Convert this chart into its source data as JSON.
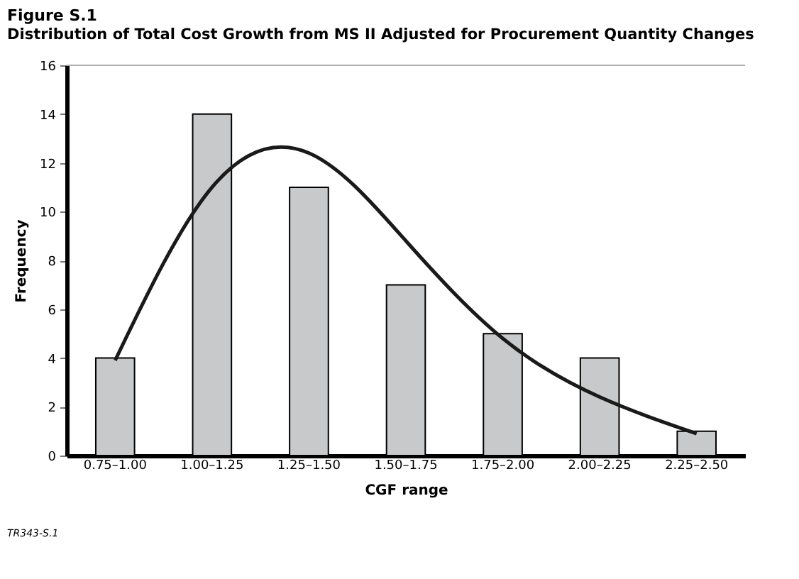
{
  "chart_data": {
    "type": "bar",
    "title": "Figure S.1",
    "subtitle": "Distribution of Total Cost Growth from MS II Adjusted for Procurement Quantity Changes",
    "xlabel": "CGF range",
    "ylabel": "Frequency",
    "categories": [
      "0.75–1.00",
      "1.00–1.25",
      "1.25–1.50",
      "1.50–1.75",
      "1.75–2.00",
      "2.00–2.25",
      "2.25–2.50"
    ],
    "series": [
      {
        "color": "#c8c9cb",
        "values": [
          4,
          14,
          11,
          7,
          5,
          4,
          1
        ]
      },
      {
        "type": "line",
        "color": "#1a1a1a",
        "x": [
          "0.75–1.00",
          "1.00–1.25",
          "1.25–1.50",
          "1.50–1.75",
          "1.75–2.00",
          "2.00–2.25",
          "2.25–2.50"
        ],
        "values": [
          3.9,
          11.0,
          12.4,
          8.8,
          4.8,
          2.4,
          0.9
        ]
      }
    ],
    "ylim": [
      0,
      16
    ],
    "yticks": [
      0,
      2,
      4,
      6,
      8,
      10,
      12,
      14,
      16
    ],
    "ref_lines": [
      {
        "axis": "y",
        "value": 16,
        "color": "#b0b0b0"
      }
    ],
    "annotations": [
      "TR343-S.1"
    ]
  }
}
